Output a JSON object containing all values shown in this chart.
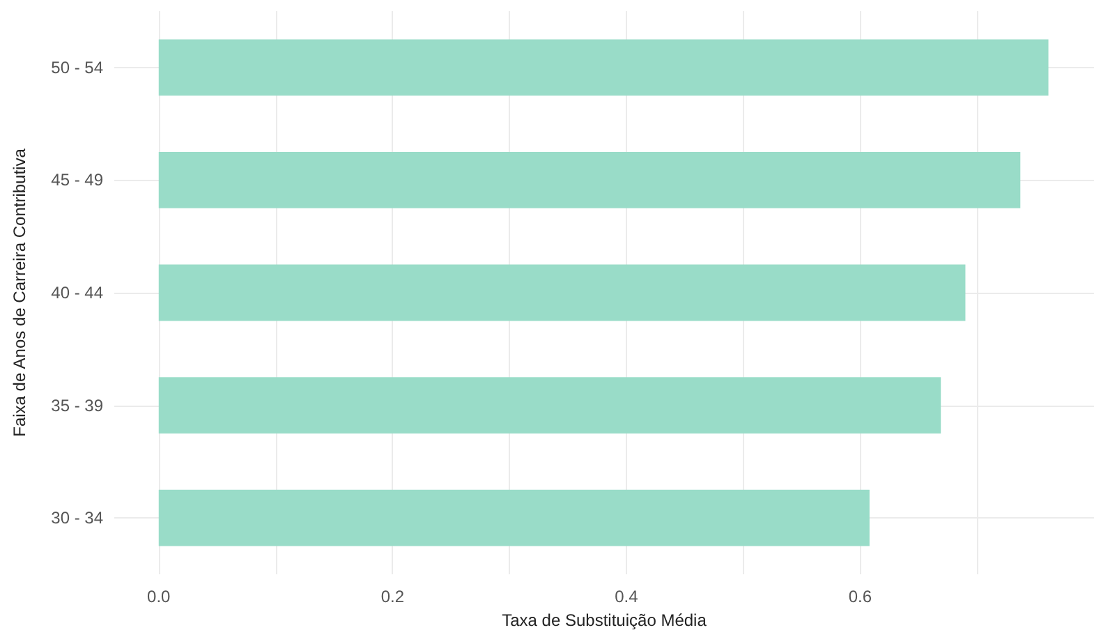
{
  "chart_data": {
    "type": "bar",
    "orientation": "horizontal",
    "xlabel": "Taxa de Substituição Média",
    "ylabel": "Faixa de Anos de Carreira Contributiva",
    "categories": [
      "50 - 54",
      "45 - 49",
      "40 - 44",
      "35 - 39",
      "30 - 34"
    ],
    "values": [
      0.761,
      0.737,
      0.69,
      0.669,
      0.608
    ],
    "color": "#99dcc8",
    "xlim": [
      -0.038,
      0.8
    ],
    "xticks": [
      {
        "value": 0,
        "label": "0.0"
      },
      {
        "value": 0.1,
        "label": null
      },
      {
        "value": 0.2,
        "label": "0.2"
      },
      {
        "value": 0.3,
        "label": null
      },
      {
        "value": 0.4,
        "label": "0.4"
      },
      {
        "value": 0.5,
        "label": null
      },
      {
        "value": 0.6,
        "label": "0.6"
      },
      {
        "value": 0.7,
        "label": null
      }
    ],
    "grid": true
  }
}
